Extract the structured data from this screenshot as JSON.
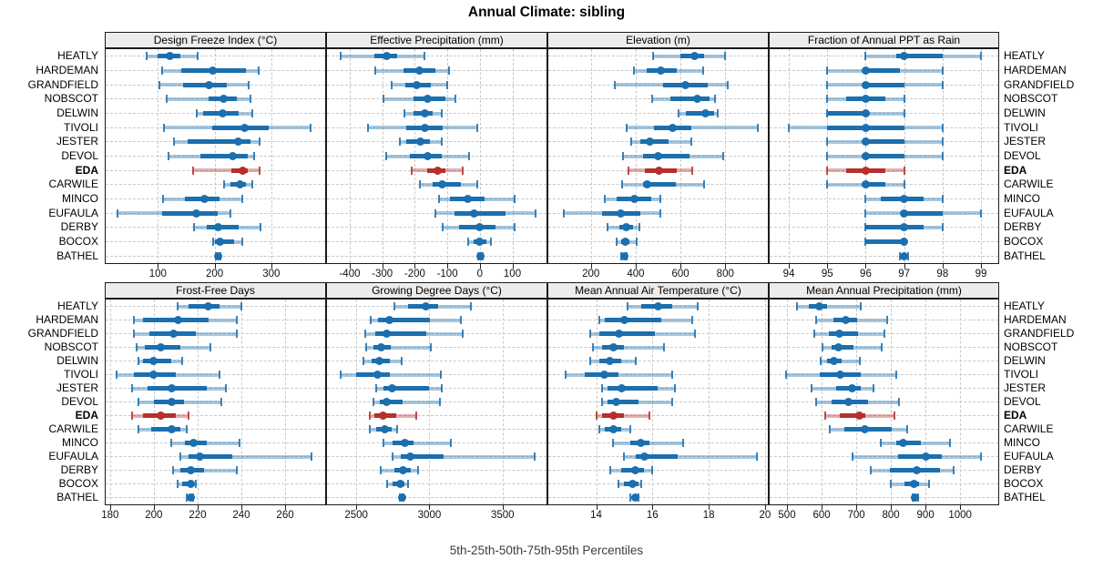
{
  "title": "Annual Climate: sibling",
  "caption": "5th-25th-50th-75th-95th Percentiles",
  "stations": [
    "HEATLY",
    "HARDEMAN",
    "GRANDFIELD",
    "NOBSCOT",
    "DELWIN",
    "TIVOLI",
    "JESTER",
    "DEVOL",
    "EDA",
    "CARWILE",
    "MINCO",
    "EUFAULA",
    "DERBY",
    "BOCOX",
    "BATHEL"
  ],
  "highlight_station": "EDA",
  "colors": {
    "series_blue": "#1b6fae",
    "highlight_red": "#b6302c",
    "grid": "#c9c9c9",
    "header_bg": "#ececec",
    "panel_border": "#1b1b1b"
  },
  "chart_data": [
    {
      "type": "dotplot_percentiles",
      "title": "Design Freeze Index (°C)",
      "percentiles": [
        5,
        25,
        50,
        75,
        95
      ],
      "xlim": [
        8,
        395
      ],
      "ticks": [
        100,
        200,
        300
      ],
      "values": [
        [
          80,
          100,
          122,
          140,
          170
        ],
        [
          108,
          141,
          197,
          256,
          277
        ],
        [
          102,
          145,
          191,
          222,
          260
        ],
        [
          115,
          190,
          216,
          240,
          263
        ],
        [
          169,
          180,
          214,
          242,
          267
        ],
        [
          110,
          196,
          253,
          295,
          370
        ],
        [
          128,
          152,
          241,
          263,
          280
        ],
        [
          118,
          175,
          232,
          259,
          269
        ],
        [
          162,
          230,
          249,
          259,
          279
        ],
        [
          217,
          228,
          245,
          255,
          266
        ],
        [
          109,
          148,
          182,
          209,
          249
        ],
        [
          29,
          108,
          167,
          206,
          228
        ],
        [
          164,
          186,
          207,
          243,
          281
        ],
        [
          198,
          201,
          210,
          234,
          249
        ],
        [
          203,
          205,
          207,
          209,
          211
        ]
      ]
    },
    {
      "type": "dotplot_percentiles",
      "title": "Effective Precipitation (mm)",
      "percentiles": [
        5,
        25,
        50,
        75,
        95
      ],
      "xlim": [
        -470,
        205
      ],
      "ticks": [
        -400,
        -300,
        -200,
        -100,
        0,
        100
      ],
      "values": [
        [
          -428,
          -323,
          -286,
          -254,
          -170
        ],
        [
          -321,
          -235,
          -185,
          -137,
          -96
        ],
        [
          -270,
          -228,
          -193,
          -152,
          -100
        ],
        [
          -295,
          -205,
          -161,
          -107,
          -74
        ],
        [
          -233,
          -205,
          -169,
          -146,
          -118
        ],
        [
          -344,
          -226,
          -169,
          -114,
          -9
        ],
        [
          -247,
          -226,
          -183,
          -154,
          -118
        ],
        [
          -288,
          -216,
          -160,
          -116,
          -34
        ],
        [
          -209,
          -163,
          -130,
          -105,
          -53
        ],
        [
          -183,
          -144,
          -116,
          -59,
          -7
        ],
        [
          -126,
          -93,
          -37,
          14,
          107
        ],
        [
          -137,
          -77,
          -17,
          79,
          172
        ],
        [
          -114,
          -65,
          0,
          49,
          107
        ],
        [
          -37,
          -19,
          0,
          19,
          34
        ],
        [
          -5,
          -1,
          3,
          6,
          9
        ]
      ]
    },
    {
      "type": "dotplot_percentiles",
      "title": "Elevation (m)",
      "percentiles": [
        5,
        25,
        50,
        75,
        95
      ],
      "xlim": [
        10,
        990
      ],
      "ticks": [
        200,
        400,
        600,
        800
      ],
      "values": [
        [
          478,
          600,
          663,
          707,
          800
        ],
        [
          392,
          448,
          513,
          583,
          703
        ],
        [
          307,
          522,
          623,
          723,
          811
        ],
        [
          475,
          553,
          674,
          730,
          754
        ],
        [
          593,
          623,
          710,
          750,
          768
        ],
        [
          361,
          482,
          566,
          650,
          945
        ],
        [
          381,
          422,
          462,
          546,
          647
        ],
        [
          345,
          432,
          502,
          640,
          791
        ],
        [
          368,
          442,
          506,
          583,
          654
        ],
        [
          341,
          432,
          451,
          580,
          707
        ],
        [
          263,
          314,
          395,
          468,
          509
        ],
        [
          79,
          251,
          334,
          422,
          509
        ],
        [
          274,
          328,
          357,
          388,
          417
        ],
        [
          317,
          334,
          352,
          372,
          405
        ],
        [
          335,
          342,
          348,
          353,
          360
        ]
      ]
    },
    {
      "type": "dotplot_percentiles",
      "title": "Fraction of Annual PPT as Rain",
      "percentiles": [
        5,
        25,
        50,
        75,
        95
      ],
      "xlim": [
        93.5,
        99.45
      ],
      "ticks": [
        94,
        95,
        96,
        97,
        98,
        99
      ],
      "values": [
        [
          96,
          96.8,
          97,
          98,
          99
        ],
        [
          95,
          96,
          96,
          96.9,
          98
        ],
        [
          95,
          96,
          96,
          97,
          98
        ],
        [
          95,
          95.5,
          96,
          96.5,
          97
        ],
        [
          95,
          95,
          96,
          96,
          97
        ],
        [
          94,
          95,
          96,
          97,
          98
        ],
        [
          95,
          96,
          96,
          97,
          98
        ],
        [
          95,
          96,
          96,
          97,
          98
        ],
        [
          95,
          95.5,
          96,
          96.5,
          97
        ],
        [
          95,
          96,
          96,
          96.5,
          97
        ],
        [
          96,
          96.4,
          97,
          97.5,
          98
        ],
        [
          96,
          97,
          97,
          98,
          99
        ],
        [
          96,
          96,
          97,
          97.5,
          98
        ],
        [
          96,
          96,
          97,
          97,
          97
        ],
        [
          96.9,
          97,
          97,
          97,
          97.1
        ]
      ]
    },
    {
      "type": "dotplot_percentiles",
      "title": "Frost-Free Days",
      "percentiles": [
        5,
        25,
        50,
        75,
        95
      ],
      "xlim": [
        178,
        278.3
      ],
      "ticks": [
        180,
        200,
        220,
        240,
        260
      ],
      "values": [
        [
          211,
          216,
          225,
          230,
          240
        ],
        [
          191,
          195,
          211,
          225,
          238
        ],
        [
          191,
          198,
          209,
          219,
          238
        ],
        [
          192,
          196,
          203,
          212,
          226
        ],
        [
          193,
          195,
          200,
          208,
          213
        ],
        [
          183,
          191,
          200,
          210,
          230
        ],
        [
          190,
          197,
          208,
          224,
          233
        ],
        [
          193,
          200,
          208,
          214,
          231
        ],
        [
          190,
          195,
          203,
          210,
          216
        ],
        [
          193,
          199,
          208,
          212,
          215
        ],
        [
          208,
          214,
          218,
          224,
          239
        ],
        [
          212,
          216,
          221,
          236,
          272
        ],
        [
          209,
          212,
          217,
          223,
          238
        ],
        [
          211,
          213,
          217,
          218,
          219
        ],
        [
          215,
          216,
          217,
          217,
          218
        ]
      ]
    },
    {
      "type": "dotplot_percentiles",
      "title": "Growing Degree Days (°C)",
      "percentiles": [
        5,
        25,
        50,
        75,
        95
      ],
      "xlim": [
        2300,
        3800
      ],
      "ticks": [
        2500,
        3000,
        3500
      ],
      "values": [
        [
          2763,
          2856,
          2975,
          3062,
          3284
        ],
        [
          2599,
          2646,
          2728,
          3004,
          3216
        ],
        [
          2564,
          2630,
          2708,
          2979,
          3230
        ],
        [
          2568,
          2619,
          2671,
          2737,
          3010
        ],
        [
          2547,
          2605,
          2660,
          2728,
          2811
        ],
        [
          2393,
          2502,
          2646,
          2728,
          3078
        ],
        [
          2634,
          2687,
          2743,
          2996,
          3086
        ],
        [
          2615,
          2660,
          2706,
          2819,
          3072
        ],
        [
          2593,
          2626,
          2685,
          2774,
          2907
        ],
        [
          2595,
          2634,
          2698,
          2743,
          2778
        ],
        [
          2687,
          2749,
          2835,
          2893,
          3144
        ],
        [
          2749,
          2805,
          2872,
          3099,
          3720
        ],
        [
          2667,
          2763,
          2821,
          2872,
          2922
        ],
        [
          2708,
          2749,
          2798,
          2831,
          2852
        ],
        [
          2795,
          2803,
          2811,
          2817,
          2825
        ]
      ]
    },
    {
      "type": "dotplot_percentiles",
      "title": "Mean Annual Air Temperature (°C)",
      "percentiles": [
        5,
        25,
        50,
        75,
        95
      ],
      "xlim": [
        12.3,
        20.1
      ],
      "ticks": [
        14,
        16,
        18,
        20
      ],
      "values": [
        [
          15.1,
          15.6,
          16.2,
          16.7,
          17.6
        ],
        [
          14.1,
          14.3,
          15.0,
          16.3,
          17.4
        ],
        [
          13.8,
          14.1,
          14.8,
          16.1,
          17.5
        ],
        [
          13.9,
          14.2,
          14.6,
          15.0,
          16.4
        ],
        [
          13.8,
          14.1,
          14.5,
          14.9,
          15.4
        ],
        [
          12.9,
          13.6,
          14.3,
          14.8,
          16.7
        ],
        [
          14.2,
          14.4,
          14.9,
          16.2,
          16.8
        ],
        [
          14.2,
          14.4,
          14.7,
          15.5,
          16.7
        ],
        [
          14.0,
          14.2,
          14.6,
          15.0,
          15.9
        ],
        [
          14.1,
          14.3,
          14.6,
          14.9,
          15.2
        ],
        [
          14.6,
          15.2,
          15.6,
          15.9,
          17.1
        ],
        [
          15.0,
          15.4,
          15.7,
          16.9,
          19.7
        ],
        [
          14.5,
          14.9,
          15.4,
          15.7,
          16.0
        ],
        [
          14.8,
          15.0,
          15.3,
          15.5,
          15.6
        ],
        [
          15.2,
          15.3,
          15.4,
          15.4,
          15.5
        ]
      ]
    },
    {
      "type": "dotplot_percentiles",
      "title": "Mean Annual Precipitation (mm)",
      "percentiles": [
        5,
        25,
        50,
        75,
        95
      ],
      "xlim": [
        450,
        1110
      ],
      "ticks": [
        500,
        600,
        700,
        800,
        900,
        1000
      ],
      "values": [
        [
          529,
          563,
          592,
          616,
          714
        ],
        [
          583,
          633,
          670,
          703,
          788
        ],
        [
          579,
          620,
          650,
          705,
          781
        ],
        [
          603,
          629,
          649,
          692,
          774
        ],
        [
          597,
          616,
          635,
          657,
          710
        ],
        [
          498,
          594,
          653,
          713,
          816
        ],
        [
          572,
          643,
          687,
          714,
          750
        ],
        [
          585,
          629,
          678,
          733,
          823
        ],
        [
          611,
          653,
          710,
          727,
          810
        ],
        [
          624,
          666,
          724,
          803,
          846
        ],
        [
          770,
          816,
          836,
          887,
          970
        ],
        [
          690,
          820,
          900,
          946,
          1059
        ],
        [
          742,
          798,
          875,
          942,
          981
        ],
        [
          800,
          840,
          866,
          881,
          911
        ],
        [
          862,
          866,
          870,
          874,
          878
        ]
      ]
    }
  ]
}
